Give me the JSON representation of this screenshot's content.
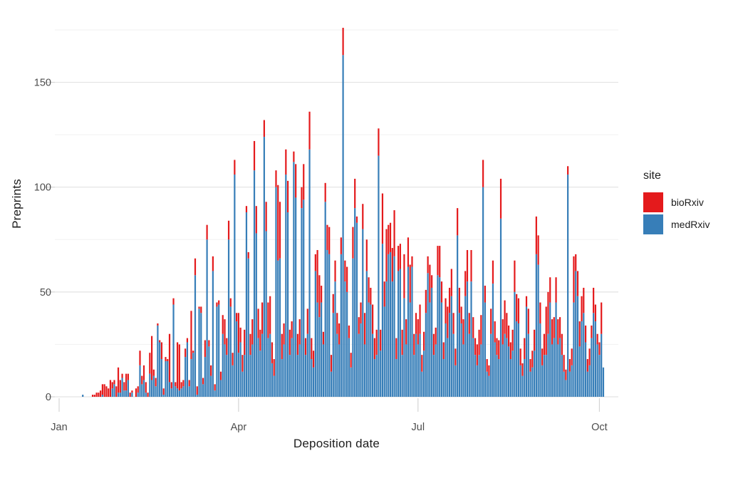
{
  "figure": {
    "background": "#ffffff"
  },
  "chart_data": {
    "type": "bar",
    "stacked": true,
    "title": "",
    "xlabel": "Deposition date",
    "ylabel": "Preprints",
    "x_tick_labels": [
      "Jan",
      "Apr",
      "Jul",
      "Oct"
    ],
    "x_tick_days": [
      1,
      92,
      183,
      275
    ],
    "y_ticks": [
      0,
      50,
      100,
      150
    ],
    "y_minor_ticks": [
      25,
      75,
      125,
      175
    ],
    "ylim": [
      0,
      185
    ],
    "x_range_days": 283,
    "grid": true,
    "grid_major_color": "#e3e3e3",
    "grid_minor_color": "#f1f1f1",
    "tick_mark_color": "#d4d4d4",
    "tick_label_color": "#4d4d4d",
    "legend": {
      "title": "site",
      "position": "right",
      "entries": [
        {
          "label": "bioRxiv",
          "color": "#e41a1c"
        },
        {
          "label": "medRxiv",
          "color": "#377eb8"
        }
      ]
    },
    "series_order_bottom_to_top": [
      "medRxiv",
      "bioRxiv"
    ],
    "days_note": "daily stacked counts starting Jan 1; each pair is [medRxiv, bioRxiv]",
    "days": [
      [
        0,
        0
      ],
      [
        0,
        0
      ],
      [
        0,
        0
      ],
      [
        0,
        0
      ],
      [
        0,
        0
      ],
      [
        0,
        0
      ],
      [
        0,
        0
      ],
      [
        0,
        0
      ],
      [
        0,
        0
      ],
      [
        0,
        0
      ],
      [
        0,
        0
      ],
      [
        0,
        0
      ],
      [
        1,
        0
      ],
      [
        0,
        0
      ],
      [
        0,
        0
      ],
      [
        0,
        0
      ],
      [
        0,
        0
      ],
      [
        0,
        1
      ],
      [
        0,
        1
      ],
      [
        0,
        2
      ],
      [
        0,
        2
      ],
      [
        0,
        3
      ],
      [
        1,
        5
      ],
      [
        0,
        6
      ],
      [
        0,
        5
      ],
      [
        0,
        4
      ],
      [
        0,
        8
      ],
      [
        4,
        3
      ],
      [
        6,
        2
      ],
      [
        0,
        5
      ],
      [
        2,
        12
      ],
      [
        2,
        6
      ],
      [
        9,
        2
      ],
      [
        3,
        4
      ],
      [
        3,
        8
      ],
      [
        8,
        3
      ],
      [
        0,
        2
      ],
      [
        2,
        1
      ],
      [
        0,
        0
      ],
      [
        0,
        4
      ],
      [
        2,
        3
      ],
      [
        15,
        7
      ],
      [
        6,
        4
      ],
      [
        8,
        7
      ],
      [
        2,
        5
      ],
      [
        0,
        2
      ],
      [
        11,
        10
      ],
      [
        8,
        21
      ],
      [
        10,
        3
      ],
      [
        5,
        4
      ],
      [
        34,
        1
      ],
      [
        26,
        1
      ],
      [
        18,
        8
      ],
      [
        1,
        3
      ],
      [
        17,
        2
      ],
      [
        17,
        1
      ],
      [
        7,
        23
      ],
      [
        4,
        3
      ],
      [
        44,
        3
      ],
      [
        5,
        2
      ],
      [
        4,
        22
      ],
      [
        3,
        22
      ],
      [
        4,
        3
      ],
      [
        5,
        3
      ],
      [
        19,
        4
      ],
      [
        26,
        2
      ],
      [
        5,
        3
      ],
      [
        18,
        23
      ],
      [
        21,
        1
      ],
      [
        58,
        8
      ],
      [
        1,
        4
      ],
      [
        42,
        1
      ],
      [
        40,
        3
      ],
      [
        6,
        3
      ],
      [
        19,
        8
      ],
      [
        75,
        7
      ],
      [
        24,
        3
      ],
      [
        10,
        5
      ],
      [
        60,
        7
      ],
      [
        3,
        3
      ],
      [
        43,
        2
      ],
      [
        44,
        2
      ],
      [
        8,
        4
      ],
      [
        30,
        9
      ],
      [
        25,
        12
      ],
      [
        20,
        8
      ],
      [
        75,
        9
      ],
      [
        43,
        4
      ],
      [
        15,
        6
      ],
      [
        106,
        7
      ],
      [
        36,
        4
      ],
      [
        21,
        19
      ],
      [
        26,
        7
      ],
      [
        12,
        8
      ],
      [
        20,
        12
      ],
      [
        88,
        3
      ],
      [
        66,
        3
      ],
      [
        20,
        10
      ],
      [
        25,
        12
      ],
      [
        108,
        14
      ],
      [
        78,
        13
      ],
      [
        28,
        14
      ],
      [
        22,
        10
      ],
      [
        30,
        15
      ],
      [
        124,
        8
      ],
      [
        79,
        14
      ],
      [
        28,
        17
      ],
      [
        30,
        18
      ],
      [
        16,
        10
      ],
      [
        10,
        8
      ],
      [
        100,
        8
      ],
      [
        65,
        36
      ],
      [
        66,
        27
      ],
      [
        18,
        12
      ],
      [
        25,
        10
      ],
      [
        106,
        12
      ],
      [
        88,
        15
      ],
      [
        20,
        12
      ],
      [
        28,
        8
      ],
      [
        112,
        5
      ],
      [
        95,
        16
      ],
      [
        20,
        10
      ],
      [
        25,
        12
      ],
      [
        90,
        10
      ],
      [
        94,
        17
      ],
      [
        20,
        8
      ],
      [
        30,
        12
      ],
      [
        118,
        18
      ],
      [
        18,
        10
      ],
      [
        14,
        8
      ],
      [
        60,
        8
      ],
      [
        45,
        25
      ],
      [
        38,
        20
      ],
      [
        45,
        8
      ],
      [
        25,
        6
      ],
      [
        93,
        9
      ],
      [
        70,
        12
      ],
      [
        68,
        13
      ],
      [
        12,
        8
      ],
      [
        40,
        9
      ],
      [
        55,
        10
      ],
      [
        30,
        10
      ],
      [
        25,
        10
      ],
      [
        68,
        8
      ],
      [
        163,
        13
      ],
      [
        55,
        10
      ],
      [
        50,
        12
      ],
      [
        28,
        6
      ],
      [
        14,
        7
      ],
      [
        66,
        15
      ],
      [
        90,
        14
      ],
      [
        83,
        3
      ],
      [
        30,
        8
      ],
      [
        35,
        10
      ],
      [
        80,
        12
      ],
      [
        25,
        15
      ],
      [
        60,
        15
      ],
      [
        45,
        12
      ],
      [
        44,
        8
      ],
      [
        30,
        14
      ],
      [
        18,
        10
      ],
      [
        20,
        12
      ],
      [
        115,
        13
      ],
      [
        22,
        10
      ],
      [
        73,
        24
      ],
      [
        43,
        12
      ],
      [
        55,
        25
      ],
      [
        68,
        14
      ],
      [
        69,
        14
      ],
      [
        55,
        16
      ],
      [
        67,
        22
      ],
      [
        18,
        10
      ],
      [
        60,
        12
      ],
      [
        61,
        12
      ],
      [
        20,
        12
      ],
      [
        47,
        21
      ],
      [
        25,
        12
      ],
      [
        62,
        14
      ],
      [
        45,
        18
      ],
      [
        62,
        5
      ],
      [
        20,
        10
      ],
      [
        30,
        10
      ],
      [
        25,
        12
      ],
      [
        30,
        14
      ],
      [
        12,
        8
      ],
      [
        22,
        9
      ],
      [
        40,
        11
      ],
      [
        59,
        8
      ],
      [
        45,
        18
      ],
      [
        52,
        6
      ],
      [
        20,
        10
      ],
      [
        25,
        8
      ],
      [
        58,
        14
      ],
      [
        57,
        15
      ],
      [
        45,
        10
      ],
      [
        18,
        8
      ],
      [
        35,
        12
      ],
      [
        28,
        15
      ],
      [
        40,
        12
      ],
      [
        48,
        13
      ],
      [
        30,
        10
      ],
      [
        15,
        8
      ],
      [
        77,
        13
      ],
      [
        40,
        12
      ],
      [
        35,
        8
      ],
      [
        25,
        12
      ],
      [
        48,
        12
      ],
      [
        55,
        15
      ],
      [
        30,
        10
      ],
      [
        55,
        15
      ],
      [
        28,
        10
      ],
      [
        20,
        8
      ],
      [
        15,
        10
      ],
      [
        20,
        12
      ],
      [
        25,
        14
      ],
      [
        100,
        13
      ],
      [
        45,
        8
      ],
      [
        12,
        6
      ],
      [
        10,
        5
      ],
      [
        30,
        12
      ],
      [
        54,
        11
      ],
      [
        26,
        10
      ],
      [
        20,
        8
      ],
      [
        18,
        9
      ],
      [
        85,
        19
      ],
      [
        25,
        12
      ],
      [
        30,
        16
      ],
      [
        28,
        12
      ],
      [
        24,
        10
      ],
      [
        18,
        8
      ],
      [
        22,
        10
      ],
      [
        50,
        15
      ],
      [
        36,
        13
      ],
      [
        35,
        12
      ],
      [
        15,
        8
      ],
      [
        10,
        6
      ],
      [
        18,
        10
      ],
      [
        43,
        5
      ],
      [
        30,
        12
      ],
      [
        12,
        6
      ],
      [
        14,
        8
      ],
      [
        22,
        10
      ],
      [
        68,
        18
      ],
      [
        63,
        14
      ],
      [
        35,
        10
      ],
      [
        15,
        8
      ],
      [
        20,
        10
      ],
      [
        20,
        23
      ],
      [
        30,
        20
      ],
      [
        45,
        12
      ],
      [
        25,
        12
      ],
      [
        28,
        10
      ],
      [
        45,
        12
      ],
      [
        25,
        12
      ],
      [
        28,
        10
      ],
      [
        20,
        10
      ],
      [
        12,
        8
      ],
      [
        8,
        5
      ],
      [
        106,
        4
      ],
      [
        12,
        6
      ],
      [
        15,
        8
      ],
      [
        45,
        22
      ],
      [
        60,
        8
      ],
      [
        48,
        12
      ],
      [
        24,
        12
      ],
      [
        36,
        12
      ],
      [
        40,
        12
      ],
      [
        26,
        8
      ],
      [
        12,
        6
      ],
      [
        15,
        8
      ],
      [
        28,
        6
      ],
      [
        40,
        12
      ],
      [
        36,
        8
      ],
      [
        25,
        5
      ],
      [
        20,
        6
      ],
      [
        30,
        15
      ],
      [
        14,
        0
      ]
    ]
  }
}
